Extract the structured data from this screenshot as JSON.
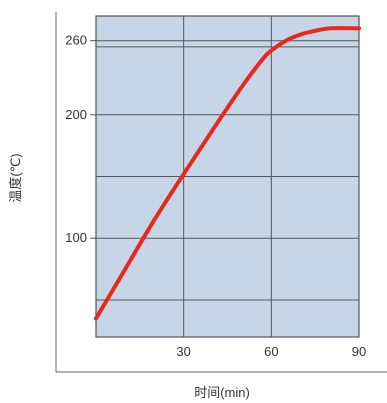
{
  "chart_data": {
    "type": "line",
    "ylabel": "温度(℃)",
    "xlabel": "时间(min)",
    "xlim": [
      0,
      90
    ],
    "ylim": [
      20,
      280
    ],
    "x_ticks": [
      {
        "value": 30,
        "label": "30"
      },
      {
        "value": 60,
        "label": "60"
      },
      {
        "value": 90,
        "label": "90"
      }
    ],
    "y_ticks": [
      {
        "value": 100,
        "label": "100"
      },
      {
        "value": 200,
        "label": "200"
      },
      {
        "value": 260,
        "label": "260"
      }
    ],
    "x_gridlines": [
      30,
      60
    ],
    "y_gridlines": [
      50,
      100,
      150,
      200,
      255,
      260
    ],
    "grid": true,
    "colors": {
      "plot_background": "#c7d6e6",
      "grid": "#555555",
      "line": "#e8281e",
      "axis": "#666666"
    },
    "series": [
      {
        "x": [
          0,
          10,
          20,
          30,
          40,
          50,
          57,
          60,
          65,
          70,
          75,
          80,
          90
        ],
        "y": [
          35,
          75,
          115,
          152,
          188,
          223,
          245,
          252,
          260,
          265,
          268,
          270,
          270
        ]
      }
    ]
  }
}
